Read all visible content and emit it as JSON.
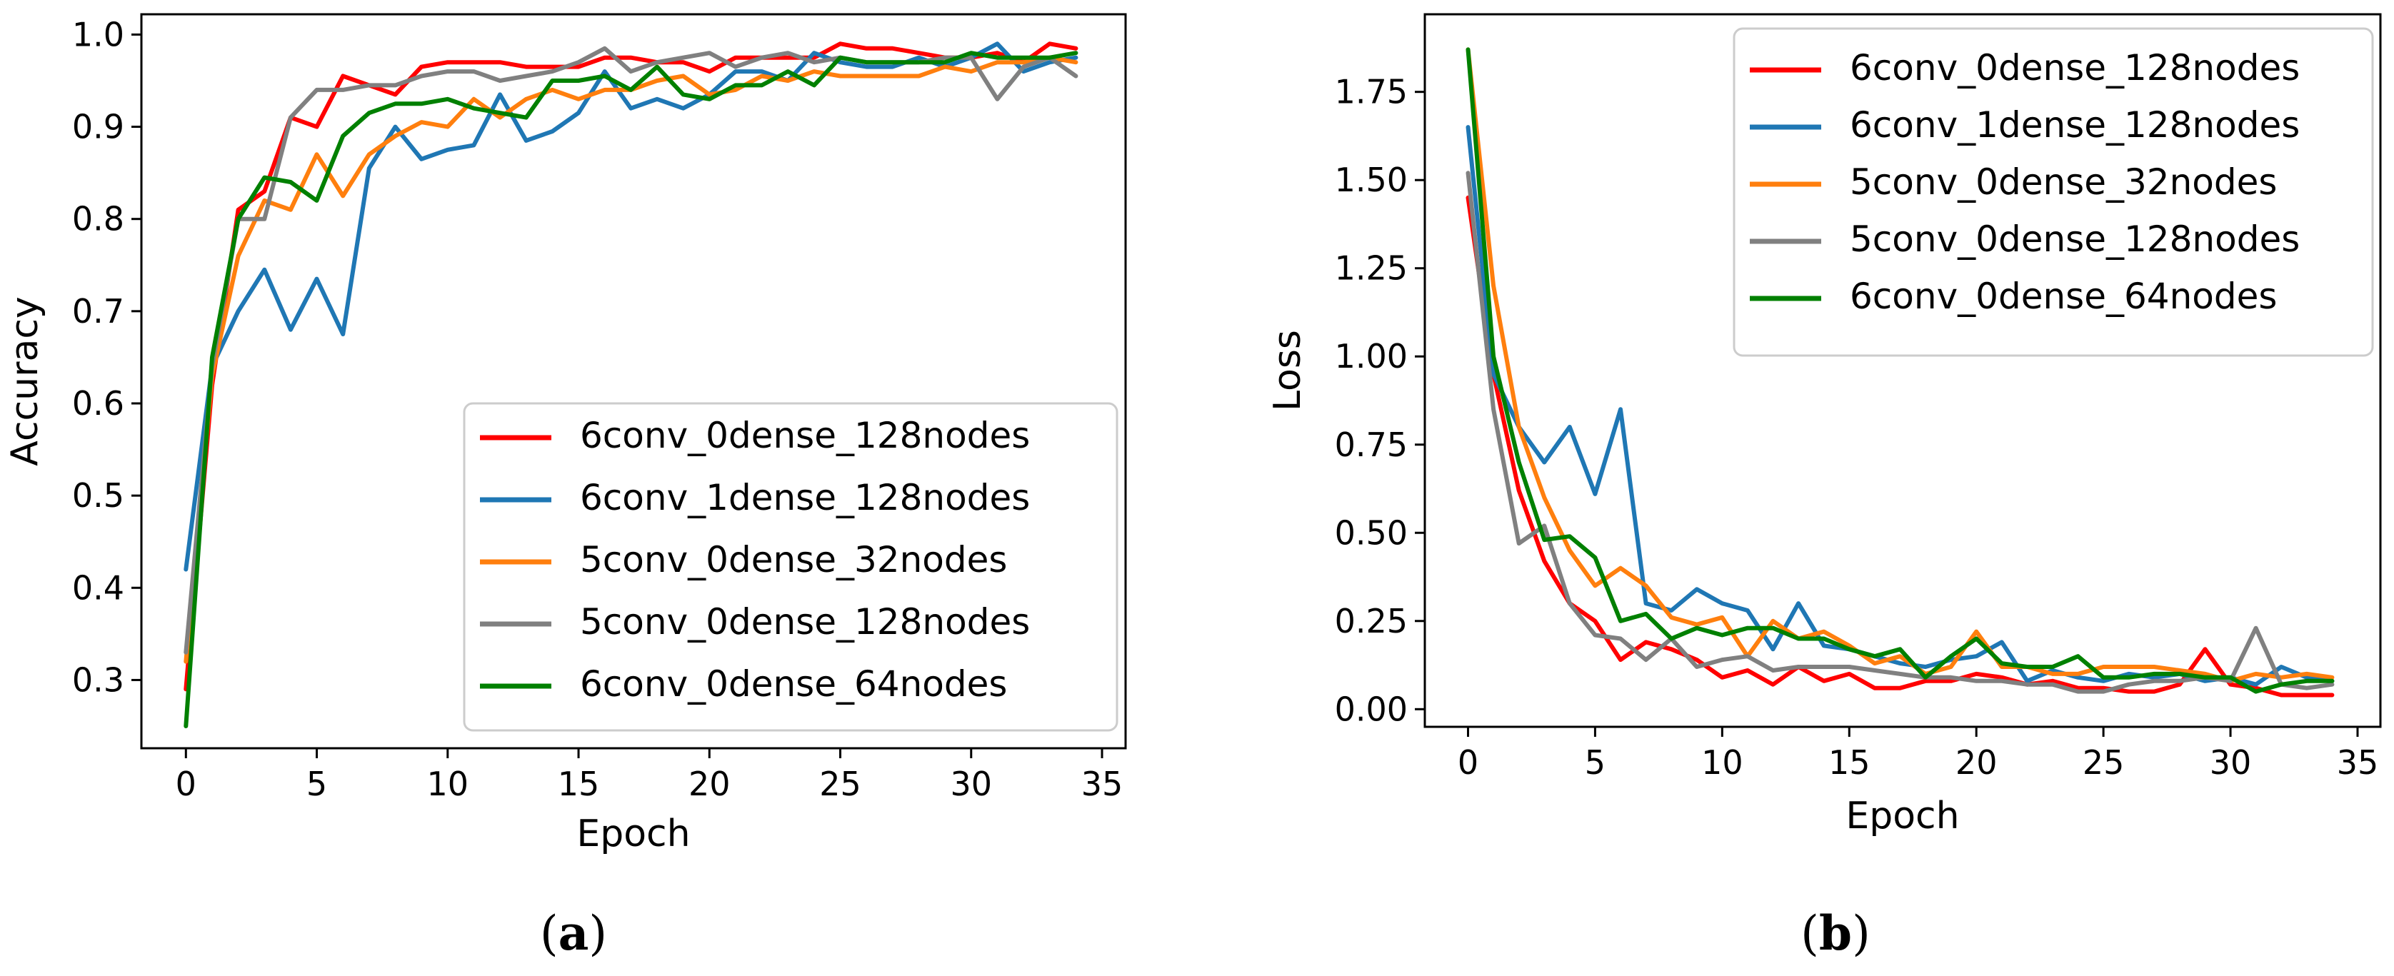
{
  "figure": {
    "caption_a": {
      "open": "(",
      "letter": "a",
      "close": ")"
    },
    "caption_b": {
      "open": "(",
      "letter": "b",
      "close": ")"
    }
  },
  "series_meta": [
    {
      "name": "6conv_0dense_128nodes",
      "color": "#ff0000"
    },
    {
      "name": "6conv_1dense_128nodes",
      "color": "#1f77b4"
    },
    {
      "name": "5conv_0dense_32nodes",
      "color": "#ff7f0e"
    },
    {
      "name": "5conv_0dense_128nodes",
      "color": "#808080"
    },
    {
      "name": "6conv_0dense_64nodes",
      "color": "#008000"
    }
  ],
  "chart_data": [
    {
      "type": "line",
      "panel": "a",
      "title": "",
      "xlabel": "Epoch",
      "ylabel": "Accuracy",
      "xlim": [
        -1.7,
        35.9
      ],
      "ylim": [
        0.226,
        1.022
      ],
      "xticks": [
        0,
        5,
        10,
        15,
        20,
        25,
        30,
        35
      ],
      "yticks": [
        0.3,
        0.4,
        0.5,
        0.6,
        0.7,
        0.8,
        0.9,
        1.0
      ],
      "xtick_labels": [
        "0",
        "5",
        "10",
        "15",
        "20",
        "25",
        "30",
        "35"
      ],
      "ytick_labels": [
        "0.3",
        "0.4",
        "0.5",
        "0.6",
        "0.7",
        "0.8",
        "0.9",
        "1.0"
      ],
      "legend_position": "lower-right",
      "x": [
        0,
        1,
        2,
        3,
        4,
        5,
        6,
        7,
        8,
        9,
        10,
        11,
        12,
        13,
        14,
        15,
        16,
        17,
        18,
        19,
        20,
        21,
        22,
        23,
        24,
        25,
        26,
        27,
        28,
        29,
        30,
        31,
        32,
        33,
        34
      ],
      "series": [
        {
          "name": "6conv_0dense_128nodes",
          "color": "#ff0000",
          "values": [
            0.29,
            0.62,
            0.81,
            0.83,
            0.91,
            0.9,
            0.955,
            0.945,
            0.935,
            0.965,
            0.97,
            0.97,
            0.97,
            0.965,
            0.965,
            0.965,
            0.975,
            0.975,
            0.97,
            0.97,
            0.96,
            0.975,
            0.975,
            0.975,
            0.975,
            0.99,
            0.985,
            0.985,
            0.98,
            0.975,
            0.975,
            0.98,
            0.97,
            0.99,
            0.985
          ]
        },
        {
          "name": "6conv_1dense_128nodes",
          "color": "#1f77b4",
          "values": [
            0.42,
            0.64,
            0.7,
            0.745,
            0.68,
            0.735,
            0.675,
            0.855,
            0.9,
            0.865,
            0.875,
            0.88,
            0.935,
            0.885,
            0.895,
            0.915,
            0.96,
            0.92,
            0.93,
            0.92,
            0.935,
            0.96,
            0.96,
            0.95,
            0.98,
            0.97,
            0.965,
            0.965,
            0.975,
            0.965,
            0.975,
            0.99,
            0.96,
            0.97,
            0.975
          ]
        },
        {
          "name": "5conv_0dense_32nodes",
          "color": "#ff7f0e",
          "values": [
            0.32,
            0.63,
            0.76,
            0.82,
            0.81,
            0.87,
            0.825,
            0.87,
            0.89,
            0.905,
            0.9,
            0.93,
            0.91,
            0.93,
            0.94,
            0.93,
            0.94,
            0.94,
            0.95,
            0.955,
            0.935,
            0.94,
            0.955,
            0.95,
            0.96,
            0.955,
            0.955,
            0.955,
            0.955,
            0.965,
            0.96,
            0.97,
            0.97,
            0.975,
            0.97
          ]
        },
        {
          "name": "5conv_0dense_128nodes",
          "color": "#808080",
          "values": [
            0.33,
            0.64,
            0.8,
            0.8,
            0.91,
            0.94,
            0.94,
            0.945,
            0.945,
            0.955,
            0.96,
            0.96,
            0.95,
            0.955,
            0.96,
            0.97,
            0.985,
            0.96,
            0.97,
            0.975,
            0.98,
            0.965,
            0.975,
            0.98,
            0.97,
            0.975,
            0.97,
            0.97,
            0.97,
            0.975,
            0.975,
            0.93,
            0.965,
            0.975,
            0.955
          ]
        },
        {
          "name": "6conv_0dense_64nodes",
          "color": "#008000",
          "values": [
            0.25,
            0.65,
            0.8,
            0.845,
            0.84,
            0.82,
            0.89,
            0.915,
            0.925,
            0.925,
            0.93,
            0.92,
            0.915,
            0.91,
            0.95,
            0.95,
            0.955,
            0.94,
            0.965,
            0.935,
            0.93,
            0.945,
            0.945,
            0.96,
            0.945,
            0.975,
            0.97,
            0.97,
            0.97,
            0.97,
            0.98,
            0.975,
            0.975,
            0.975,
            0.98
          ]
        }
      ]
    },
    {
      "type": "line",
      "panel": "b",
      "title": "",
      "xlabel": "Epoch",
      "ylabel": "Loss",
      "xlim": [
        -1.7,
        35.9
      ],
      "ylim": [
        -0.05,
        1.97
      ],
      "xticks": [
        0,
        5,
        10,
        15,
        20,
        25,
        30,
        35
      ],
      "yticks": [
        0.0,
        0.25,
        0.5,
        0.75,
        1.0,
        1.25,
        1.5,
        1.75
      ],
      "xtick_labels": [
        "0",
        "5",
        "10",
        "15",
        "20",
        "25",
        "30",
        "35"
      ],
      "ytick_labels": [
        "0.00",
        "0.25",
        "0.50",
        "0.75",
        "1.00",
        "1.25",
        "1.50",
        "1.75"
      ],
      "legend_position": "upper-right",
      "x": [
        0,
        1,
        2,
        3,
        4,
        5,
        6,
        7,
        8,
        9,
        10,
        11,
        12,
        13,
        14,
        15,
        16,
        17,
        18,
        19,
        20,
        21,
        22,
        23,
        24,
        25,
        26,
        27,
        28,
        29,
        30,
        31,
        32,
        33,
        34
      ],
      "series": [
        {
          "name": "6conv_0dense_128nodes",
          "color": "#ff0000",
          "values": [
            1.45,
            0.95,
            0.62,
            0.42,
            0.3,
            0.25,
            0.14,
            0.19,
            0.17,
            0.14,
            0.09,
            0.11,
            0.07,
            0.12,
            0.08,
            0.1,
            0.06,
            0.06,
            0.08,
            0.08,
            0.1,
            0.09,
            0.07,
            0.08,
            0.06,
            0.06,
            0.05,
            0.05,
            0.07,
            0.17,
            0.07,
            0.06,
            0.04,
            0.04,
            0.04
          ]
        },
        {
          "name": "6conv_1dense_128nodes",
          "color": "#1f77b4",
          "values": [
            1.65,
            0.95,
            0.8,
            0.7,
            0.8,
            0.61,
            0.85,
            0.3,
            0.28,
            0.34,
            0.3,
            0.28,
            0.17,
            0.3,
            0.18,
            0.17,
            0.15,
            0.13,
            0.12,
            0.14,
            0.15,
            0.19,
            0.08,
            0.11,
            0.09,
            0.08,
            0.1,
            0.09,
            0.1,
            0.08,
            0.09,
            0.07,
            0.12,
            0.09,
            0.08
          ]
        },
        {
          "name": "5conv_0dense_32nodes",
          "color": "#ff7f0e",
          "values": [
            1.87,
            1.2,
            0.8,
            0.6,
            0.45,
            0.35,
            0.4,
            0.35,
            0.26,
            0.24,
            0.26,
            0.15,
            0.25,
            0.2,
            0.22,
            0.18,
            0.13,
            0.15,
            0.1,
            0.12,
            0.22,
            0.12,
            0.12,
            0.1,
            0.1,
            0.12,
            0.12,
            0.12,
            0.11,
            0.1,
            0.08,
            0.1,
            0.09,
            0.1,
            0.09
          ]
        },
        {
          "name": "5conv_0dense_128nodes",
          "color": "#808080",
          "values": [
            1.52,
            0.85,
            0.47,
            0.52,
            0.3,
            0.21,
            0.2,
            0.14,
            0.2,
            0.12,
            0.14,
            0.15,
            0.11,
            0.12,
            0.12,
            0.12,
            0.11,
            0.1,
            0.09,
            0.09,
            0.08,
            0.08,
            0.07,
            0.07,
            0.05,
            0.05,
            0.07,
            0.08,
            0.08,
            0.09,
            0.08,
            0.23,
            0.07,
            0.06,
            0.07
          ]
        },
        {
          "name": "6conv_0dense_64nodes",
          "color": "#008000",
          "values": [
            1.87,
            1.0,
            0.7,
            0.48,
            0.49,
            0.43,
            0.25,
            0.27,
            0.2,
            0.23,
            0.21,
            0.23,
            0.23,
            0.2,
            0.2,
            0.17,
            0.15,
            0.17,
            0.09,
            0.15,
            0.2,
            0.13,
            0.12,
            0.12,
            0.15,
            0.09,
            0.09,
            0.1,
            0.1,
            0.09,
            0.09,
            0.05,
            0.07,
            0.08,
            0.08
          ]
        }
      ]
    }
  ]
}
